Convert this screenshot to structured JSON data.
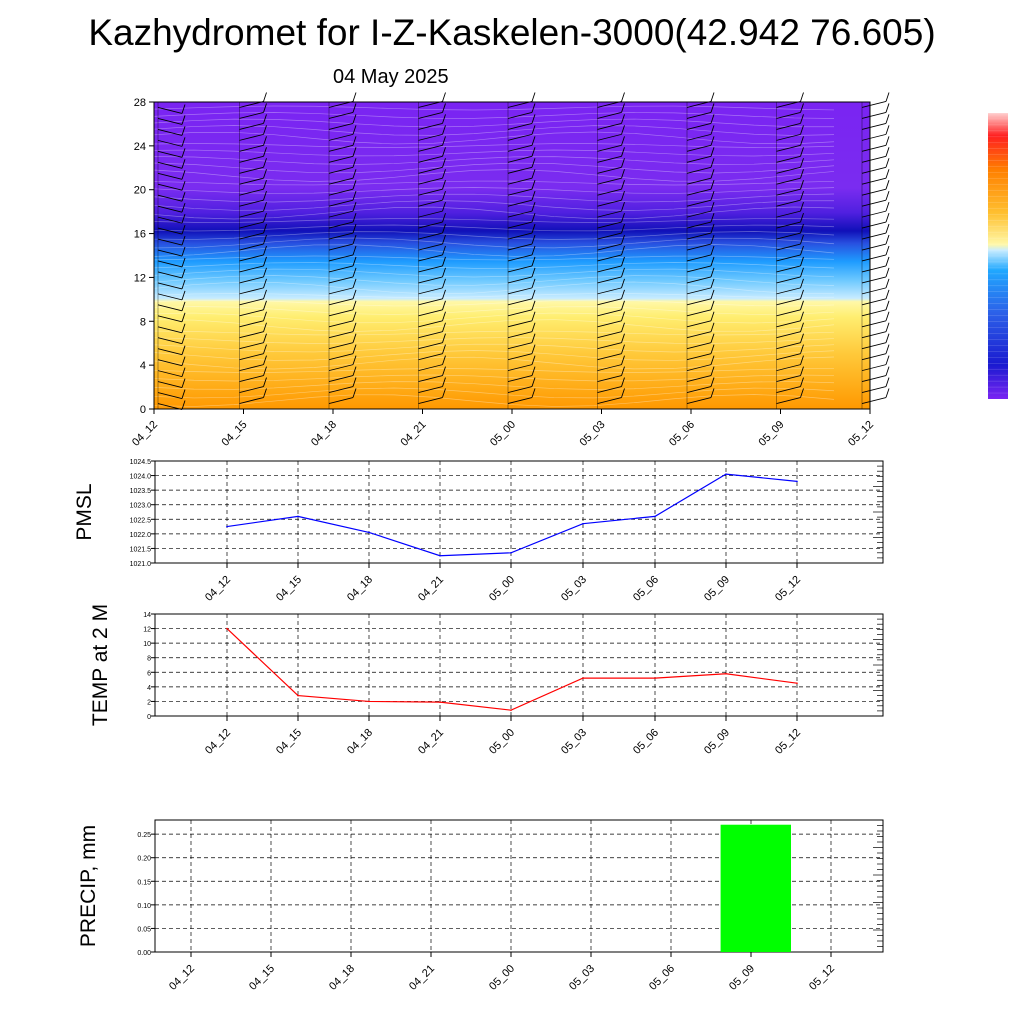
{
  "title": "Kazhydromet for I-Z-Kaskelen-3000(42.942 76.605)",
  "subtitle": "04 May 2025",
  "chart_data": [
    {
      "type": "heatmap",
      "x_labels": [
        "04_12",
        "04_15",
        "04_18",
        "04_21",
        "05_00",
        "05_03",
        "05_06",
        "05_09",
        "05_12"
      ],
      "y_ticks": [
        0,
        4,
        8,
        12,
        16,
        20,
        24,
        28
      ],
      "ylim": [
        0,
        28
      ],
      "colorbar": true,
      "colors": {
        "low": "#ff9a00",
        "mid_yellow": "#fff8a0",
        "light_blue": "#a8dcff",
        "cyan": "#1ea8ff",
        "blue": "#1414c8",
        "purple": "#7828f0"
      }
    },
    {
      "type": "line",
      "ylabel": "PMSL",
      "x_labels": [
        "04_12",
        "04_15",
        "04_18",
        "04_21",
        "05_00",
        "05_03",
        "05_06",
        "05_09",
        "05_12"
      ],
      "values": [
        1022.25,
        1022.6,
        1022.05,
        1021.25,
        1021.35,
        1022.35,
        1022.6,
        1024.05,
        1023.8
      ],
      "ylim": [
        1021.0,
        1024.5
      ],
      "y_ticks": [
        "1021.0",
        "1021.5",
        "1022.0",
        "1022.5",
        "1023.0",
        "1023.5",
        "1024.0",
        "1024.5"
      ],
      "color": "#0000ff",
      "grid": true
    },
    {
      "type": "line",
      "ylabel": "TEMP at 2 M",
      "x_labels": [
        "04_12",
        "04_15",
        "04_18",
        "04_21",
        "05_00",
        "05_03",
        "05_06",
        "05_09",
        "05_12"
      ],
      "values": [
        12.0,
        2.8,
        2.0,
        1.9,
        0.8,
        5.2,
        5.2,
        5.8,
        4.5
      ],
      "ylim": [
        0,
        14
      ],
      "y_ticks": [
        "0",
        "2",
        "4",
        "6",
        "8",
        "10",
        "12",
        "14"
      ],
      "color": "#ff0000",
      "grid": true
    },
    {
      "type": "bar",
      "ylabel": "PRECIP, mm",
      "x_labels": [
        "04_12",
        "04_15",
        "04_18",
        "04_21",
        "05_00",
        "05_03",
        "05_06",
        "05_09",
        "05_12"
      ],
      "bars": [
        {
          "from": "05_06",
          "to": "05_12",
          "value": 0.27
        }
      ],
      "ylim": [
        0,
        0.28
      ],
      "y_ticks": [
        "0.00",
        "0.05",
        "0.10",
        "0.15",
        "0.20",
        "0.25"
      ],
      "color": "#00ff00",
      "grid": true
    }
  ]
}
